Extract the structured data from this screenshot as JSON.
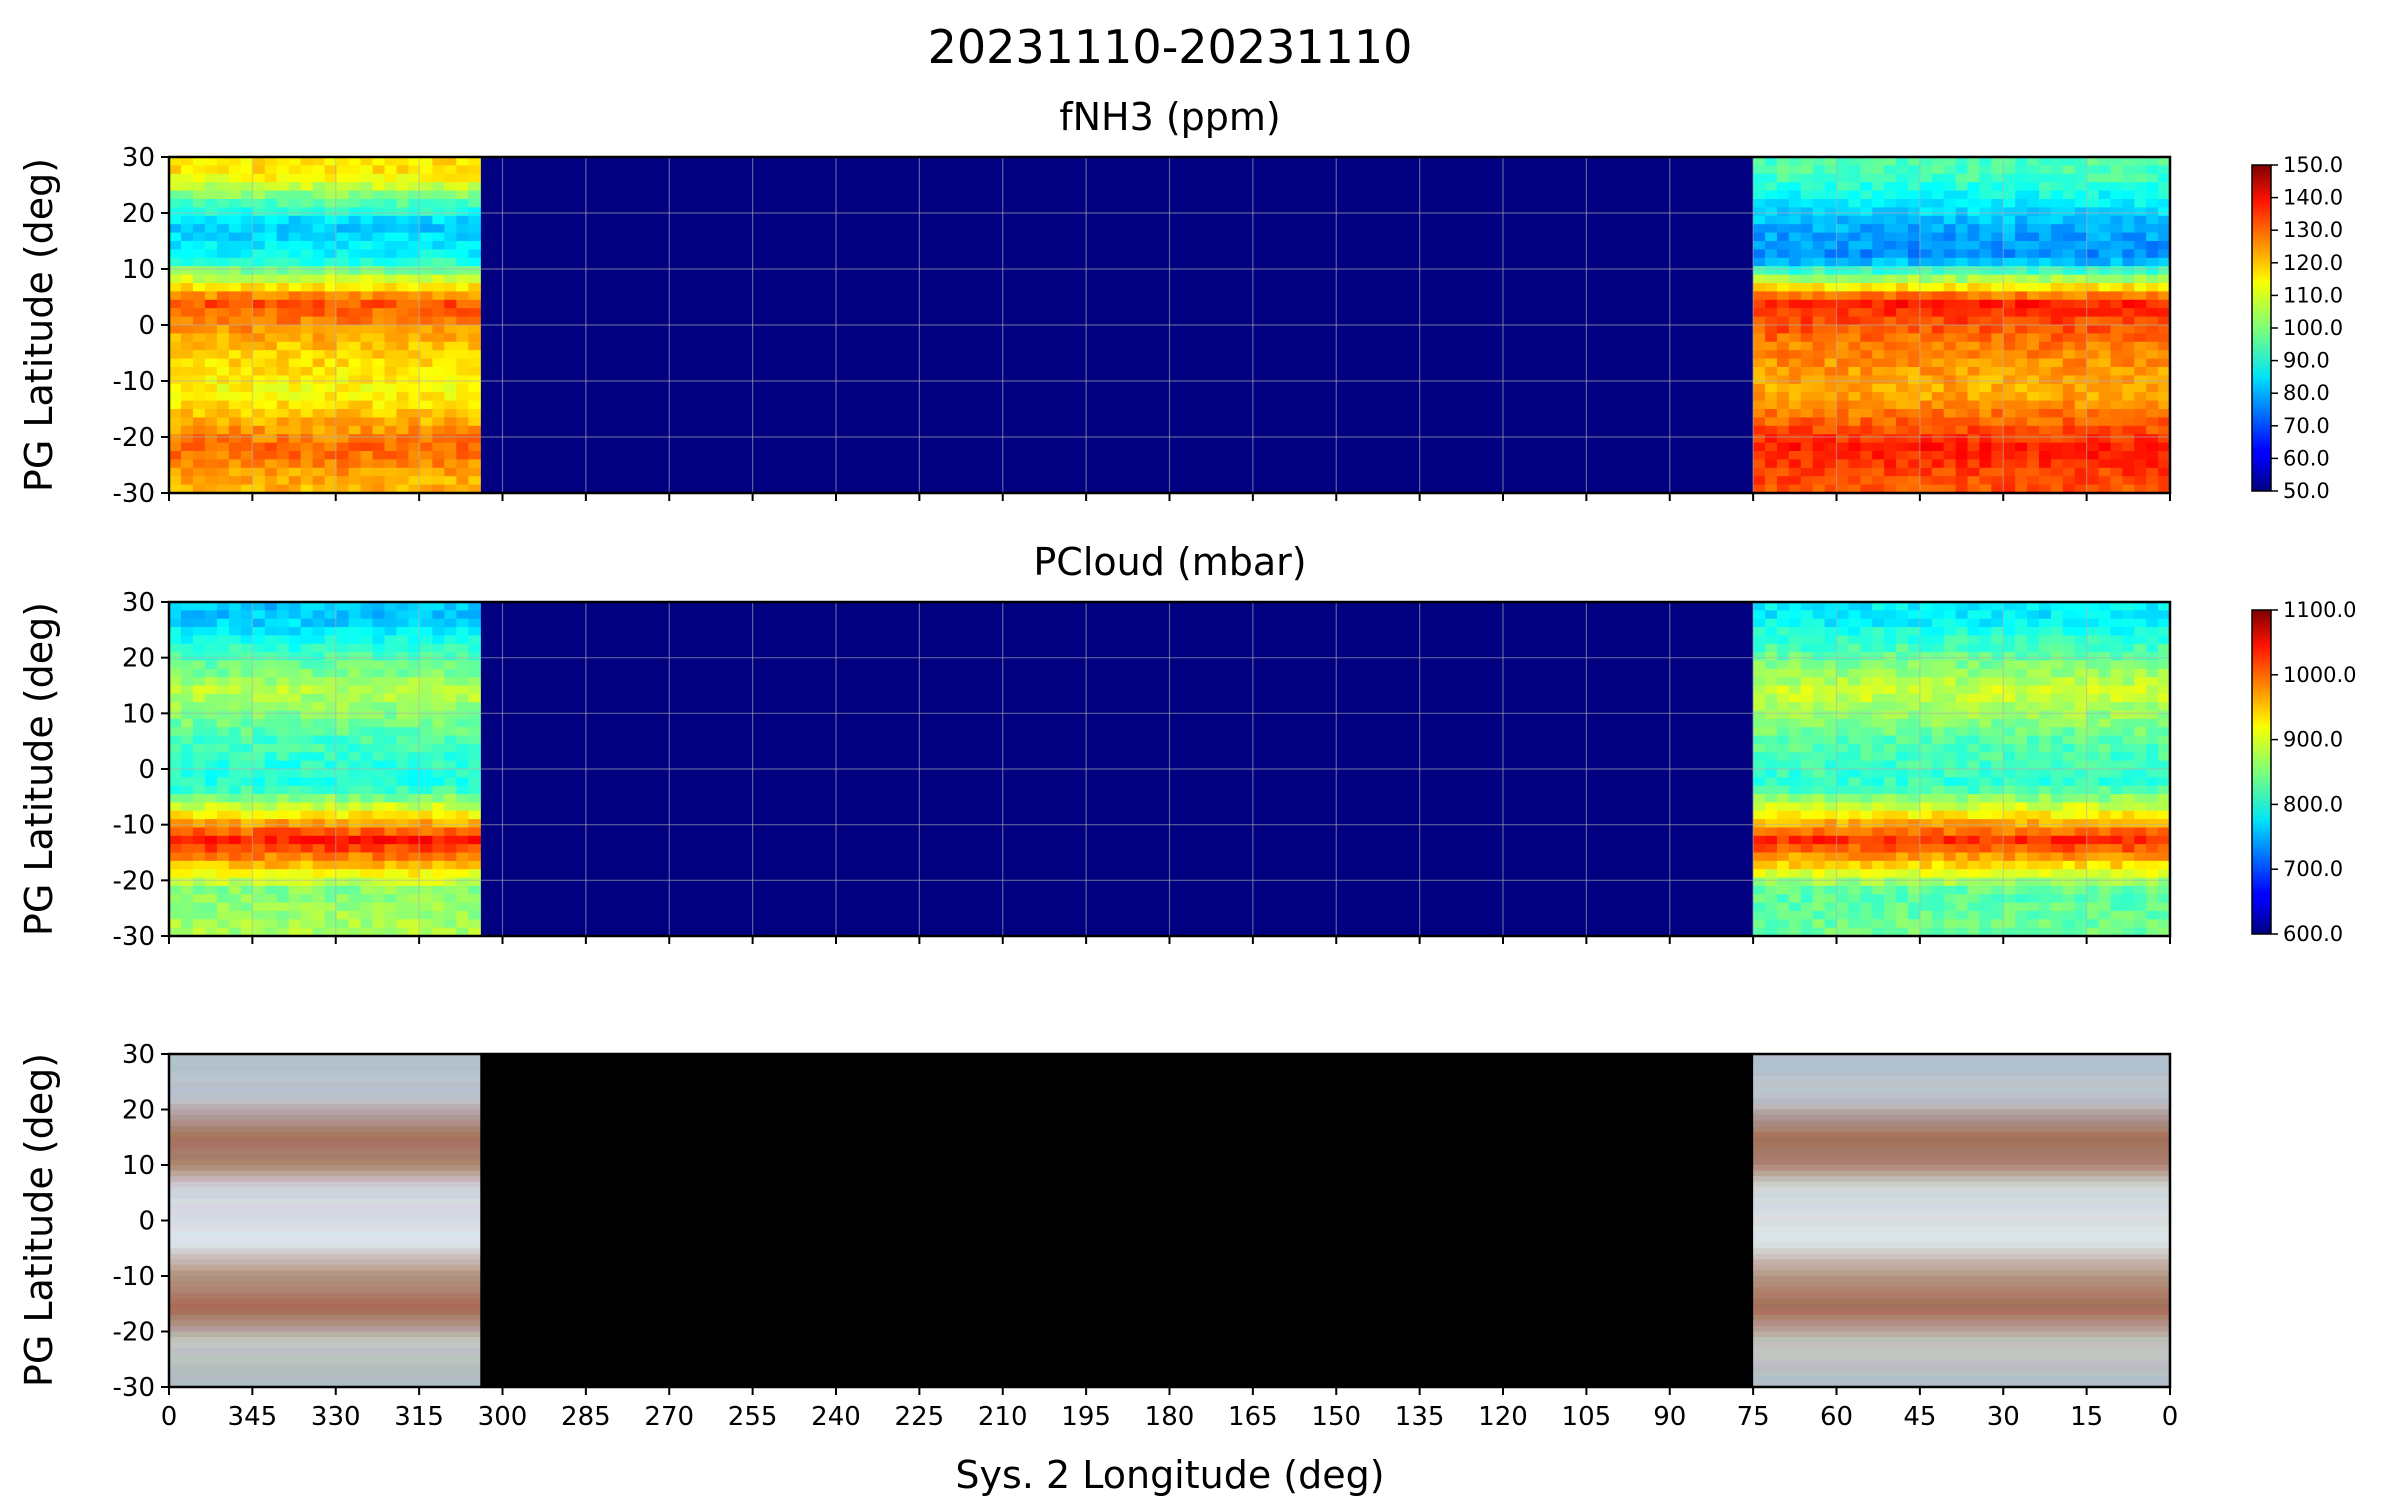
{
  "figure": {
    "suptitle": "20231110-20231110",
    "xlabel": "Sys. 2 Longitude (deg)"
  },
  "chart_data": [
    {
      "type": "heatmap",
      "title": "fNH3 (ppm)",
      "ylabel": "PG Latitude (deg)",
      "xlim": [
        360,
        0
      ],
      "ylim": [
        -30,
        30
      ],
      "xticks": [
        "0",
        "345",
        "330",
        "315",
        "300",
        "285",
        "270",
        "255",
        "240",
        "225",
        "210",
        "195",
        "180",
        "165",
        "150",
        "135",
        "120",
        "105",
        "90",
        "75",
        "60",
        "45",
        "30",
        "15",
        "0"
      ],
      "yticks": [
        "30",
        "20",
        "10",
        "0",
        "-10",
        "-20",
        "-30"
      ],
      "grid": true,
      "colormap": "jet",
      "colorbar": {
        "min": 50,
        "max": 150,
        "ticks": [
          "150.0",
          "140.0",
          "130.0",
          "120.0",
          "110.0",
          "100.0",
          "90.0",
          "80.0",
          "70.0",
          "60.0",
          "50.0"
        ]
      },
      "coverage_longitude_ranges": [
        [
          360,
          304
        ],
        [
          75,
          0
        ]
      ],
      "no_data_fill_value": 50,
      "latitude_bands": [
        {
          "lat": 27,
          "west": 115,
          "east": 95
        },
        {
          "lat": 18,
          "west": 82,
          "east": 80
        },
        {
          "lat": 12,
          "west": 88,
          "east": 76
        },
        {
          "lat": 4,
          "west": 130,
          "east": 135
        },
        {
          "lat": -4,
          "west": 118,
          "east": 125
        },
        {
          "lat": -12,
          "west": 112,
          "east": 120
        },
        {
          "lat": -22,
          "west": 128,
          "east": 135
        },
        {
          "lat": -28,
          "west": 120,
          "east": 130
        }
      ]
    },
    {
      "type": "heatmap",
      "title": "PCloud (mbar)",
      "ylabel": "PG Latitude (deg)",
      "xlim": [
        360,
        0
      ],
      "ylim": [
        -30,
        30
      ],
      "xticks": [
        "0",
        "345",
        "330",
        "315",
        "300",
        "285",
        "270",
        "255",
        "240",
        "225",
        "210",
        "195",
        "180",
        "165",
        "150",
        "135",
        "120",
        "105",
        "90",
        "75",
        "60",
        "45",
        "30",
        "15",
        "0"
      ],
      "yticks": [
        "30",
        "20",
        "10",
        "0",
        "-10",
        "-20",
        "-30"
      ],
      "grid": true,
      "colormap": "jet",
      "colorbar": {
        "min": 600,
        "max": 1100,
        "ticks": [
          "1100.0",
          "1000.0",
          "900.0",
          "800.0",
          "700.0",
          "600.0"
        ]
      },
      "coverage_longitude_ranges": [
        [
          360,
          304
        ],
        [
          75,
          0
        ]
      ],
      "no_data_fill_value": 600,
      "latitude_bands": [
        {
          "lat": 27,
          "west": 760,
          "east": 780
        },
        {
          "lat": 14,
          "west": 880,
          "east": 890
        },
        {
          "lat": 5,
          "west": 820,
          "east": 830
        },
        {
          "lat": -3,
          "west": 800,
          "east": 810
        },
        {
          "lat": -13,
          "west": 1030,
          "east": 1020
        },
        {
          "lat": -22,
          "west": 850,
          "east": 830
        },
        {
          "lat": -28,
          "west": 870,
          "east": 840
        }
      ]
    },
    {
      "type": "heatmap",
      "title": "",
      "ylabel": "PG Latitude (deg)",
      "xlim": [
        360,
        0
      ],
      "ylim": [
        -30,
        30
      ],
      "xticks": [
        "0",
        "345",
        "330",
        "315",
        "300",
        "285",
        "270",
        "255",
        "240",
        "225",
        "210",
        "195",
        "180",
        "165",
        "150",
        "135",
        "120",
        "105",
        "90",
        "75",
        "60",
        "45",
        "30",
        "15",
        "0"
      ],
      "yticks": [
        "30",
        "20",
        "10",
        "0",
        "-10",
        "-20",
        "-30"
      ],
      "grid": false,
      "image": "true-color cylindrical map",
      "coverage_longitude_ranges": [
        [
          360,
          304
        ],
        [
          75,
          0
        ]
      ],
      "no_data_color": "#000000"
    }
  ]
}
